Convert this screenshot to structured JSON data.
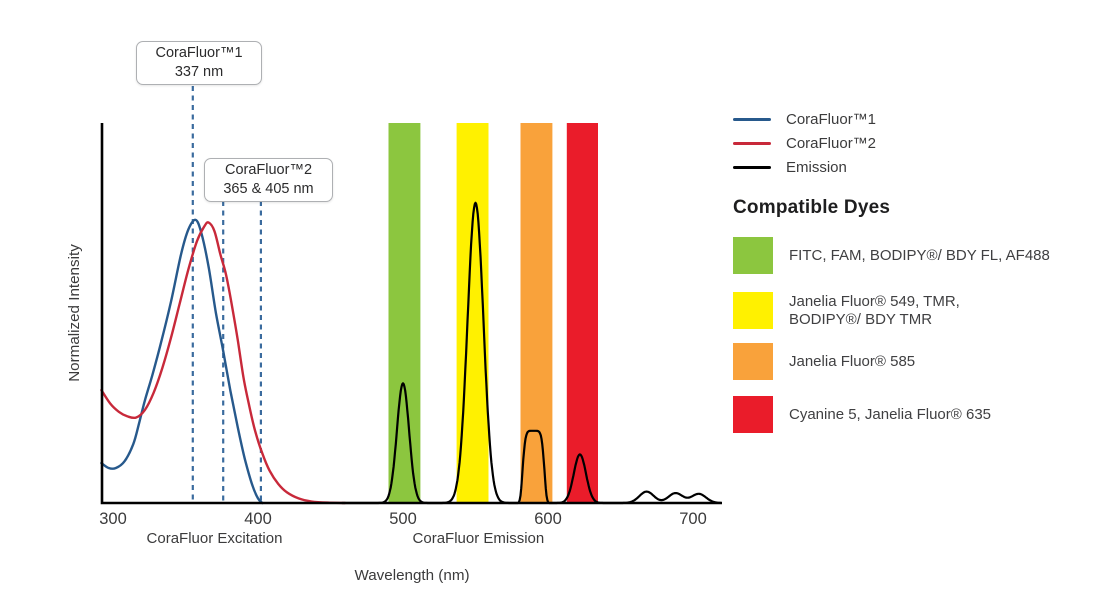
{
  "colors": {
    "excitation1_blue": "#27598C",
    "excitation2_red": "#C8293A",
    "emission_black": "#000000",
    "dashed_line_blue": "#3A6B9E",
    "band_green": "#8CC63F",
    "band_yellow": "#FFF100",
    "band_orange": "#F9A23B",
    "band_red": "#EA1C2A",
    "axis": "#000000",
    "text": "#3B3B3C"
  },
  "chart_data": {
    "type": "line",
    "title": "",
    "xlabel": "Wavelength (nm)",
    "ylabel": "Normalized Intensity",
    "x_range": [
      292,
      719
    ],
    "y_range": [
      0,
      1
    ],
    "grid": false,
    "x_ticks": [
      300,
      400,
      500,
      600,
      700
    ],
    "axis_section_labels": [
      {
        "label": "CoraFluor Excitation",
        "center_nm": 370
      },
      {
        "label": "CoraFluor Emission",
        "center_nm": 552
      }
    ],
    "annotations": [
      {
        "title": "CoraFluor™1",
        "subtitle": "337 nm",
        "lines_nm": [
          355
        ]
      },
      {
        "title": "CoraFluor™2",
        "subtitle": "365 & 405 nm",
        "lines_nm": [
          376,
          402
        ]
      }
    ],
    "filter_bands": [
      {
        "name": "green-filter-band",
        "color": "#8CC63F",
        "nm": [
          490,
          512
        ]
      },
      {
        "name": "yellow-filter-band",
        "color": "#FFF100",
        "nm": [
          537,
          559
        ]
      },
      {
        "name": "orange-filter-band",
        "color": "#F9A23B",
        "nm": [
          581,
          603
        ]
      },
      {
        "name": "red-filter-band",
        "color": "#EA1C2A",
        "nm": [
          613,
          634.5
        ]
      }
    ],
    "series": [
      {
        "name": "CoraFluor™1",
        "kind": "excitation",
        "color": "#27598C",
        "stroke_width": 2.4,
        "points": [
          [
            292,
            0.105
          ],
          [
            297,
            0.092
          ],
          [
            302,
            0.092
          ],
          [
            308,
            0.11
          ],
          [
            314,
            0.155
          ],
          [
            318,
            0.21
          ],
          [
            322,
            0.27
          ],
          [
            327,
            0.335
          ],
          [
            333,
            0.42
          ],
          [
            340,
            0.53
          ],
          [
            347,
            0.655
          ],
          [
            352,
            0.72
          ],
          [
            357,
            0.745
          ],
          [
            361,
            0.71
          ],
          [
            366,
            0.62
          ],
          [
            371,
            0.5
          ],
          [
            376,
            0.4
          ],
          [
            381,
            0.295
          ],
          [
            386,
            0.2
          ],
          [
            391,
            0.115
          ],
          [
            396,
            0.048
          ],
          [
            400,
            0.012
          ],
          [
            403,
            0
          ]
        ]
      },
      {
        "name": "CoraFluor™2",
        "kind": "excitation",
        "color": "#C8293A",
        "stroke_width": 2.4,
        "points": [
          [
            292,
            0.297
          ],
          [
            298,
            0.262
          ],
          [
            304,
            0.24
          ],
          [
            310,
            0.228
          ],
          [
            316,
            0.225
          ],
          [
            322,
            0.245
          ],
          [
            328,
            0.29
          ],
          [
            334,
            0.355
          ],
          [
            340,
            0.435
          ],
          [
            346,
            0.525
          ],
          [
            352,
            0.615
          ],
          [
            358,
            0.69
          ],
          [
            363,
            0.728
          ],
          [
            366,
            0.738
          ],
          [
            370,
            0.715
          ],
          [
            374,
            0.655
          ],
          [
            378,
            0.6
          ],
          [
            382,
            0.52
          ],
          [
            386,
            0.43
          ],
          [
            390,
            0.33
          ],
          [
            394,
            0.255
          ],
          [
            398,
            0.19
          ],
          [
            403,
            0.13
          ],
          [
            408,
            0.085
          ],
          [
            414,
            0.05
          ],
          [
            420,
            0.028
          ],
          [
            428,
            0.012
          ],
          [
            437,
            0.004
          ],
          [
            448,
            0.001
          ],
          [
            460,
            0
          ]
        ]
      },
      {
        "name": "Emission",
        "kind": "emission",
        "color": "#000000",
        "stroke_width": 2.2,
        "sample_range": [
          458,
          719
        ],
        "peaks": [
          {
            "center": 500,
            "amp": 0.315,
            "sigma": 4.2,
            "power": 2
          },
          {
            "center": 550,
            "amp": 0.79,
            "sigma": 5.5,
            "power": 2
          },
          {
            "center": 590,
            "amp": 0.19,
            "sigma": 7,
            "power": 6
          },
          {
            "center": 622,
            "amp": 0.128,
            "sigma": 4.2,
            "power": 2
          },
          {
            "center": 668,
            "amp": 0.03,
            "sigma": 5,
            "power": 2
          },
          {
            "center": 688,
            "amp": 0.026,
            "sigma": 5,
            "power": 2
          },
          {
            "center": 704,
            "amp": 0.024,
            "sigma": 5,
            "power": 2
          }
        ]
      }
    ]
  },
  "legend": {
    "items": [
      {
        "label": "CoraFluor™1",
        "color": "#27598C"
      },
      {
        "label": "CoraFluor™2",
        "color": "#C8293A"
      },
      {
        "label": "Emission",
        "color": "#000000"
      }
    ]
  },
  "dyes": {
    "heading": "Compatible Dyes",
    "items": [
      {
        "label": "FITC, FAM, BODIPY®/ BDY FL, AF488",
        "color": "#8CC63F"
      },
      {
        "label": "Janelia Fluor® 549, TMR,\nBODIPY®/ BDY TMR",
        "color": "#FFF100"
      },
      {
        "label": "Janelia Fluor® 585",
        "color": "#F9A23B"
      },
      {
        "label": "Cyanine 5, Janelia Fluor® 635",
        "color": "#EA1C2A"
      }
    ]
  }
}
